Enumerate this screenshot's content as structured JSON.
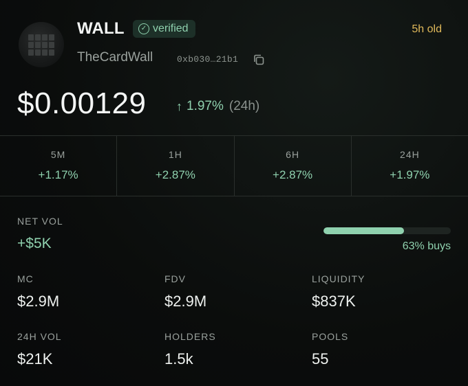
{
  "header": {
    "name": "WALL",
    "verified_label": "verified",
    "age": "5h old",
    "handle": "TheCardWall",
    "address": "0xb030…21b1",
    "avatar_icon": "card-wall-logo"
  },
  "price": {
    "value": "$0.00129",
    "change": "1.97%",
    "period": "(24h)"
  },
  "periods": [
    {
      "label": "5M",
      "value": "+1.17%"
    },
    {
      "label": "1H",
      "value": "+2.87%"
    },
    {
      "label": "6H",
      "value": "+2.87%"
    },
    {
      "label": "24H",
      "value": "+1.97%"
    }
  ],
  "net_vol": {
    "label": "NET VOL",
    "value": "+$5K",
    "buys_fraction": 0.63,
    "buys_label": "63% buys"
  },
  "stats": [
    {
      "label": "MC",
      "value": "$2.9M"
    },
    {
      "label": "FDV",
      "value": "$2.9M"
    },
    {
      "label": "LIQUIDITY",
      "value": "$837K"
    },
    {
      "label": "24H VOL",
      "value": "$21K"
    },
    {
      "label": "HOLDERS",
      "value": "1.5k"
    },
    {
      "label": "POOLS",
      "value": "55"
    }
  ],
  "colors": {
    "positive": "#8fd1ae",
    "age": "#e0b95a",
    "background": "#0b0d0c"
  }
}
